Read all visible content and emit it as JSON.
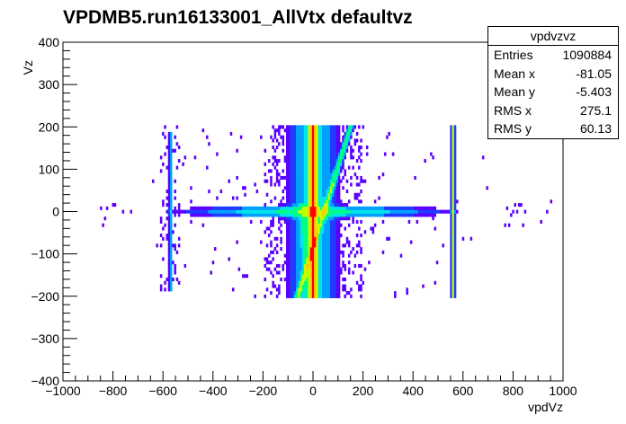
{
  "chart_data": {
    "type": "heatmap",
    "title": "VPDMB5.run16133001_AllVtx defaultvz",
    "xlabel": "vpdVz",
    "ylabel": "Vz",
    "xlim": [
      -1000,
      1000
    ],
    "ylim": [
      -400,
      400
    ],
    "x_ticks": [
      -1000,
      -800,
      -600,
      -400,
      -200,
      0,
      200,
      400,
      600,
      800,
      1000
    ],
    "y_ticks": [
      -400,
      -300,
      -200,
      -100,
      0,
      100,
      200,
      300,
      400
    ],
    "x_tick_labels": [
      "−1000",
      "−800",
      "−600",
      "−400",
      "−200",
      "0",
      "200",
      "400",
      "600",
      "800",
      "1000"
    ],
    "y_tick_labels": [
      "−400",
      "−300",
      "−200",
      "−100",
      "0",
      "100",
      "200",
      "300",
      "400"
    ],
    "grid": false,
    "palette": [
      "#5a00ff",
      "#1e3cff",
      "#00a0ff",
      "#00e6e6",
      "#00ff80",
      "#c8ff00",
      "#ffc800",
      "#ff0000"
    ],
    "features": [
      {
        "kind": "vertical_band",
        "x": 0,
        "ymin": -200,
        "ymax": 200,
        "intensity": 5
      },
      {
        "kind": "horizontal_band",
        "y": 0,
        "xmin": -720,
        "xmax": 720,
        "intensity": 2
      },
      {
        "kind": "diagonal_band",
        "x1": -60,
        "y1": -200,
        "x2": 150,
        "y2": 200,
        "intensity": 3
      },
      {
        "kind": "vertical_line",
        "x": 560,
        "ymin": -200,
        "ymax": 200,
        "intensity": 3
      },
      {
        "kind": "vertical_line",
        "x": -570,
        "ymin": -190,
        "ymax": 190,
        "intensity": 1
      },
      {
        "kind": "hot_spot",
        "x": 0,
        "y": 0,
        "intensity": 7
      }
    ]
  },
  "stats": {
    "name": "vpdvzvz",
    "entries_label": "Entries",
    "entries_value": "1090884",
    "mean_x_label": "Mean x",
    "mean_x_value": "-81.05",
    "mean_y_label": "Mean y",
    "mean_y_value": "-5.403",
    "rms_x_label": "RMS x",
    "rms_x_value": "275.1",
    "rms_y_label": "RMS y",
    "rms_y_value": "60.13"
  }
}
